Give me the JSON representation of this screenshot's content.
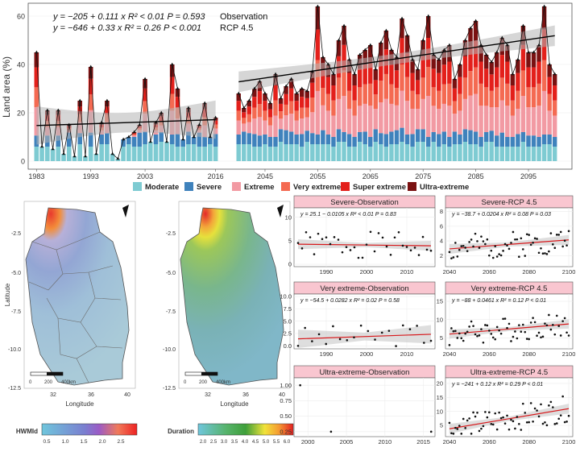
{
  "colors": {
    "moderate": "#7ecbd2",
    "severe": "#3f82bc",
    "extreme": "#f29aa3",
    "very_extreme": "#f46a52",
    "super_extreme": "#e3201b",
    "ultra_extreme": "#7a1111",
    "trend": "#000000",
    "small_trend": "#d7191c"
  },
  "chart_data": [
    {
      "type": "bar",
      "ylabel": "Land area (%)",
      "ylim": [
        0,
        65
      ],
      "yticks": [
        0,
        20,
        40,
        60
      ],
      "grid": true,
      "legend_position": "bottom",
      "legend": [
        "Moderate",
        "Severe",
        "Extreme",
        "Very extreme",
        "Super extreme",
        "Ultra-extreme"
      ],
      "observation": {
        "label": "Observation",
        "years": [
          1983,
          2016
        ],
        "xticks": [
          "1983",
          "1993",
          "2003",
          "2016"
        ],
        "equation": "y = −205 + 0.111 x   R² < 0.01   P = 0.593",
        "values": [
          45,
          6,
          21,
          5,
          21,
          3,
          15,
          2,
          25,
          2,
          39,
          3,
          16,
          25,
          3,
          1,
          9,
          10,
          12,
          15,
          34,
          8,
          16,
          20,
          8,
          40,
          30,
          9,
          22,
          10,
          15,
          24,
          10,
          18
        ]
      },
      "rcp45": {
        "label": "RCP 4.5",
        "years": [
          2040,
          2100
        ],
        "xticks": [
          "2045",
          "2055",
          "2065",
          "2075",
          "2085",
          "2095"
        ],
        "equation": "y = −646 + 0.33 x   R² = 0.26   P < 0.001",
        "values": [
          28,
          22,
          25,
          30,
          33,
          28,
          24,
          36,
          26,
          31,
          34,
          28,
          30,
          29,
          37,
          64,
          43,
          40,
          36,
          50,
          56,
          42,
          36,
          44,
          46,
          48,
          38,
          49,
          54,
          46,
          43,
          59,
          52,
          42,
          38,
          50,
          60,
          44,
          42,
          46,
          48,
          34,
          40,
          50,
          55,
          58,
          48,
          44,
          41,
          45,
          51,
          48,
          36,
          42,
          56,
          45,
          45,
          48,
          64,
          40,
          36
        ]
      }
    },
    {
      "type": "scatter",
      "title": "Severe-Observation",
      "equation": "y = 25.1 − 0.0105 x   R² < 0.01   P = 0.83",
      "xticks": [
        "1990",
        "2000",
        "2010"
      ],
      "yticks": [
        "0",
        "5",
        "10"
      ],
      "xlim": [
        1982,
        2017
      ],
      "ylim": [
        -0.5,
        12
      ]
    },
    {
      "type": "scatter",
      "title": "Severe-RCP 4.5",
      "equation": "y = −38.7 + 0.0204 x   R² = 0.08   P = 0.03",
      "xticks": [
        "2040",
        "2060",
        "2080",
        "2100"
      ],
      "yticks": [
        "2",
        "4",
        "6",
        "8"
      ],
      "xlim": [
        2038,
        2102
      ],
      "ylim": [
        0.5,
        8.5
      ]
    },
    {
      "type": "scatter",
      "title": "Very extreme-Observation",
      "equation": "y = −54.5 + 0.0282 x   R² = 0.02   P = 0.58",
      "xticks": [
        "1990",
        "2000",
        "2010"
      ],
      "yticks": [
        "0.0",
        "2.5",
        "5.0",
        "7.5",
        "10.0"
      ],
      "xlim": [
        1982,
        2017
      ],
      "ylim": [
        -0.6,
        10.5
      ]
    },
    {
      "type": "scatter",
      "title": "Very extreme-RCP 4.5",
      "equation": "y = −88 + 0.0461 x   R² = 0.12   P < 0.01",
      "xticks": [
        "2040",
        "2060",
        "2080",
        "2100"
      ],
      "yticks": [
        "5",
        "10",
        "15"
      ],
      "xlim": [
        2038,
        2102
      ],
      "ylim": [
        2,
        17
      ]
    },
    {
      "type": "scatter",
      "title": "Ultra-extreme-Observation",
      "equation": "",
      "xticks": [
        "2000",
        "2005",
        "2010",
        "2015"
      ],
      "yticks": [
        "0.25",
        "0.50",
        "0.75",
        "1.00"
      ],
      "xlim": [
        1998.2,
        2016.5
      ],
      "ylim": [
        0.17,
        1.12
      ]
    },
    {
      "type": "scatter",
      "title": "Ultra-extreme-RCP 4.5",
      "equation": "y = −241 + 0.12 x   R² = 0.29   P < 0.01",
      "xticks": [
        "2040",
        "2060",
        "2080",
        "2100"
      ],
      "yticks": [
        "5",
        "10",
        "15",
        "20"
      ],
      "xlim": [
        2038,
        2102
      ],
      "ylim": [
        1,
        22
      ]
    }
  ],
  "maps": {
    "latitude_label": "Latitude",
    "longitude_label": "Longitude",
    "lat_ticks": [
      "-2.5",
      "-5.0",
      "-7.5",
      "-10.0",
      "-12.5"
    ],
    "lon_ticks": [
      "32",
      "36",
      "40"
    ],
    "scale_labels": [
      "0",
      "200",
      "400km"
    ],
    "hwmid": {
      "colorbar_label": "HWMId",
      "ticks": [
        "0.5",
        "1.0",
        "1.5",
        "2.0",
        "2.5"
      ]
    },
    "duration": {
      "colorbar_label": "Duration",
      "ticks": [
        "2.0",
        "2.5",
        "3.0",
        "3.5",
        "4.0",
        "4.5",
        "5.0",
        "5.5",
        "6.0"
      ]
    }
  }
}
